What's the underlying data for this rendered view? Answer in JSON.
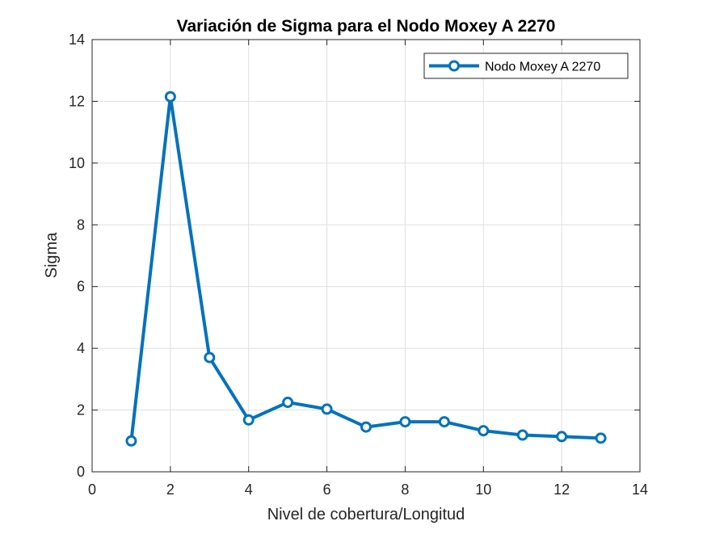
{
  "chart_data": {
    "type": "line",
    "title": "Variación de Sigma para el Nodo Moxey A 2270",
    "xlabel": "Nivel de cobertura/Longitud",
    "ylabel": "Sigma",
    "xlim": [
      0,
      14
    ],
    "ylim": [
      0,
      14
    ],
    "xticks": [
      0,
      2,
      4,
      6,
      8,
      10,
      12,
      14
    ],
    "yticks": [
      0,
      2,
      4,
      6,
      8,
      10,
      12,
      14
    ],
    "xtick_labels": [
      "0",
      "2",
      "4",
      "6",
      "8",
      "10",
      "12",
      "14"
    ],
    "ytick_labels": [
      "0",
      "2",
      "4",
      "6",
      "8",
      "10",
      "12",
      "14"
    ],
    "grid": true,
    "legend_position": "top-right",
    "series": [
      {
        "name": "Nodo Moxey A 2270",
        "color": "#0072BD",
        "marker": "circle",
        "x": [
          1,
          2,
          3,
          4,
          5,
          6,
          7,
          8,
          9,
          10,
          11,
          12,
          13
        ],
        "y": [
          1.0,
          12.15,
          3.7,
          1.68,
          2.25,
          2.03,
          1.45,
          1.62,
          1.62,
          1.33,
          1.19,
          1.14,
          1.09
        ]
      }
    ]
  }
}
